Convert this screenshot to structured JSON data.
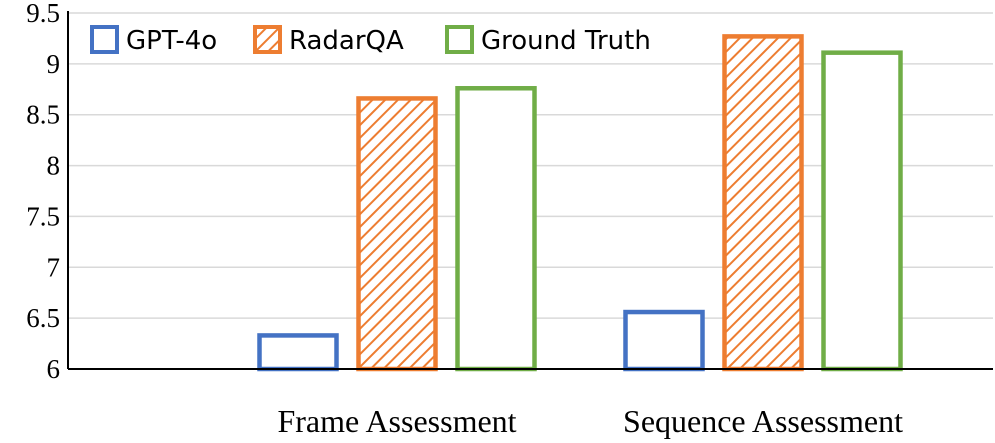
{
  "chart_data": {
    "type": "bar",
    "categories": [
      "Frame Assessment",
      "Sequence Assessment"
    ],
    "series": [
      {
        "name": "GPT-4o",
        "values": [
          6.33,
          6.56
        ],
        "color": "#4472C4",
        "pattern": "none"
      },
      {
        "name": "RadarQA",
        "values": [
          8.66,
          9.27
        ],
        "color": "#ED7D31",
        "pattern": "diagonal-hatch"
      },
      {
        "name": "Ground Truth",
        "values": [
          8.76,
          9.11
        ],
        "color": "#70AD47",
        "pattern": "none"
      }
    ],
    "title": "",
    "xlabel": "",
    "ylabel": "",
    "ylim": [
      6,
      9.5
    ],
    "yticks": [
      "6",
      "6.5",
      "7",
      "7.5",
      "8",
      "8.5",
      "9",
      "9.5"
    ],
    "grid": true,
    "legend_position": "top-left"
  }
}
